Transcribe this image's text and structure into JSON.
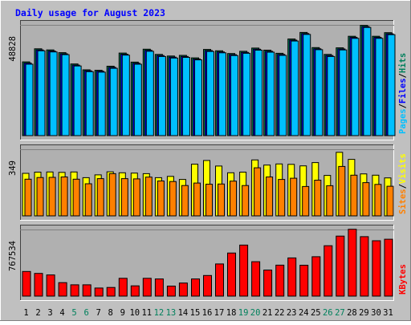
{
  "title": "Daily usage for August 2023",
  "colors": {
    "background": "#c0c0c0",
    "plot_background": "#b0b0b0",
    "title": "#0000ff",
    "hits": "#00805c",
    "files": "#0000ff",
    "pages": "#00c0ff",
    "visits": "#ffff00",
    "sites": "#ff8000",
    "kbytes": "#ff0000",
    "weekend_day": "#00805c",
    "weekday": "#000000"
  },
  "chart_data": [
    {
      "type": "bar",
      "name": "hits-files-pages",
      "max_label": "48828",
      "right_labels": [
        "Pages",
        "Files",
        "Hits"
      ],
      "separator": "/",
      "categories": [
        "1",
        "2",
        "3",
        "4",
        "5",
        "6",
        "7",
        "8",
        "9",
        "10",
        "11",
        "12",
        "13",
        "14",
        "15",
        "16",
        "17",
        "18",
        "19",
        "20",
        "21",
        "22",
        "23",
        "24",
        "25",
        "26",
        "27",
        "28",
        "29",
        "30",
        "31"
      ],
      "ylim": [
        0,
        48828
      ],
      "series": [
        {
          "name": "Hits",
          "values": [
            32500,
            38300,
            37800,
            36600,
            31600,
            29000,
            28800,
            30600,
            36400,
            32400,
            38100,
            35800,
            35100,
            35400,
            34300,
            38000,
            37400,
            36200,
            37200,
            38600,
            37700,
            36300,
            42600,
            45500,
            38800,
            35800,
            38700,
            43800,
            48600,
            43800,
            45400
          ]
        },
        {
          "name": "Files",
          "values": [
            32000,
            37800,
            37300,
            36100,
            31100,
            28600,
            28400,
            30100,
            35900,
            31900,
            37600,
            35300,
            34600,
            34900,
            33800,
            37500,
            36900,
            35700,
            36700,
            38100,
            37200,
            35800,
            42100,
            45000,
            38300,
            35300,
            38200,
            43300,
            48100,
            43300,
            44900
          ]
        },
        {
          "name": "Pages",
          "values": [
            31500,
            37400,
            36900,
            35700,
            30700,
            28200,
            28000,
            29700,
            35500,
            31500,
            37200,
            34900,
            34200,
            34500,
            33400,
            37100,
            36500,
            35300,
            36300,
            37700,
            36800,
            35400,
            41700,
            44600,
            37900,
            34900,
            37800,
            42900,
            47700,
            42900,
            44500
          ]
        }
      ]
    },
    {
      "type": "bar",
      "name": "visits-sites",
      "max_label": "349",
      "right_labels": [
        "Sites",
        "Visits"
      ],
      "separator": "/",
      "categories": [
        "1",
        "2",
        "3",
        "4",
        "5",
        "6",
        "7",
        "8",
        "9",
        "10",
        "11",
        "12",
        "13",
        "14",
        "15",
        "16",
        "17",
        "18",
        "19",
        "20",
        "21",
        "22",
        "23",
        "24",
        "25",
        "26",
        "27",
        "28",
        "29",
        "30",
        "31"
      ],
      "ylim": [
        0,
        349
      ],
      "series": [
        {
          "name": "Visits",
          "values": [
            223,
            229,
            230,
            228,
            230,
            200,
            215,
            231,
            226,
            224,
            221,
            200,
            207,
            191,
            271,
            290,
            261,
            226,
            229,
            293,
            266,
            272,
            270,
            262,
            279,
            212,
            333,
            296,
            220,
            213,
            199
          ]
        },
        {
          "name": "Sites",
          "values": [
            192,
            201,
            202,
            204,
            192,
            168,
            195,
            221,
            195,
            194,
            203,
            183,
            180,
            159,
            172,
            166,
            167,
            182,
            159,
            252,
            204,
            191,
            197,
            154,
            187,
            158,
            259,
            213,
            174,
            165,
            155
          ]
        }
      ]
    },
    {
      "type": "bar",
      "name": "kbytes",
      "max_label": "767534",
      "right_labels": [
        "KBytes"
      ],
      "separator": "/",
      "categories": [
        "1",
        "2",
        "3",
        "4",
        "5",
        "6",
        "7",
        "8",
        "9",
        "10",
        "11",
        "12",
        "13",
        "14",
        "15",
        "16",
        "17",
        "18",
        "19",
        "20",
        "21",
        "22",
        "23",
        "24",
        "25",
        "26",
        "27",
        "28",
        "29",
        "30",
        "31"
      ],
      "ylim": [
        0,
        767534
      ],
      "series": [
        {
          "name": "KBytes",
          "values": [
            284000,
            262000,
            244000,
            155000,
            130000,
            130000,
            93000,
            100000,
            205000,
            118000,
            205000,
            198000,
            116000,
            151000,
            198000,
            238000,
            371000,
            497000,
            588000,
            397000,
            301000,
            357000,
            440000,
            356000,
            454000,
            581000,
            692000,
            770000,
            685000,
            638000,
            656000
          ]
        }
      ]
    }
  ]
}
